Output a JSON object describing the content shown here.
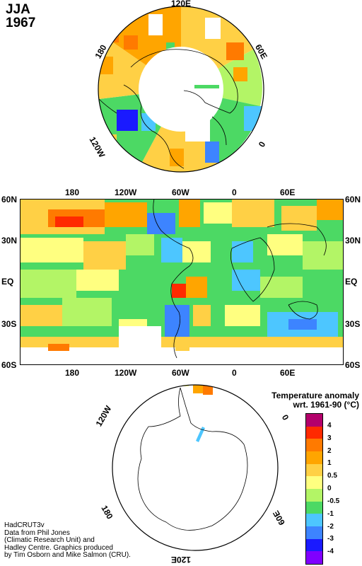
{
  "title": {
    "season": "JJA",
    "year": "1967"
  },
  "north_map": {
    "longitude_labels": [
      "120E",
      "180",
      "60E",
      "120W",
      "0"
    ]
  },
  "main_map": {
    "lat_labels": [
      "60N",
      "30N",
      "EQ",
      "30S",
      "60S"
    ],
    "lon_labels": [
      "180",
      "120W",
      "60W",
      "0",
      "60E"
    ]
  },
  "south_map": {
    "longitude_labels": [
      "120W",
      "0",
      "180",
      "60E",
      "120E"
    ]
  },
  "legend": {
    "title_line1": "Temperature anomaly",
    "title_line2": "wrt. 1961-90  (°C)",
    "labels": [
      "4",
      "3",
      "2",
      "1",
      "0.5",
      "0",
      "-0.5",
      "-1",
      "-2",
      "-3",
      "-4"
    ],
    "colors": [
      "#b3006b",
      "#ff2a00",
      "#ff7a00",
      "#ffa500",
      "#ffd045",
      "#ffff80",
      "#b3f566",
      "#4cd964",
      "#4dc6ff",
      "#3d84ff",
      "#1a1aff",
      "#8000ff"
    ]
  },
  "credits": [
    "HadCRUT3v",
    "Data from Phil Jones",
    "(Climatic Research Unit) and",
    "Hadley Centre.  Graphics produced",
    "by Tim Osborn and Mike Salmon (CRU)."
  ]
}
